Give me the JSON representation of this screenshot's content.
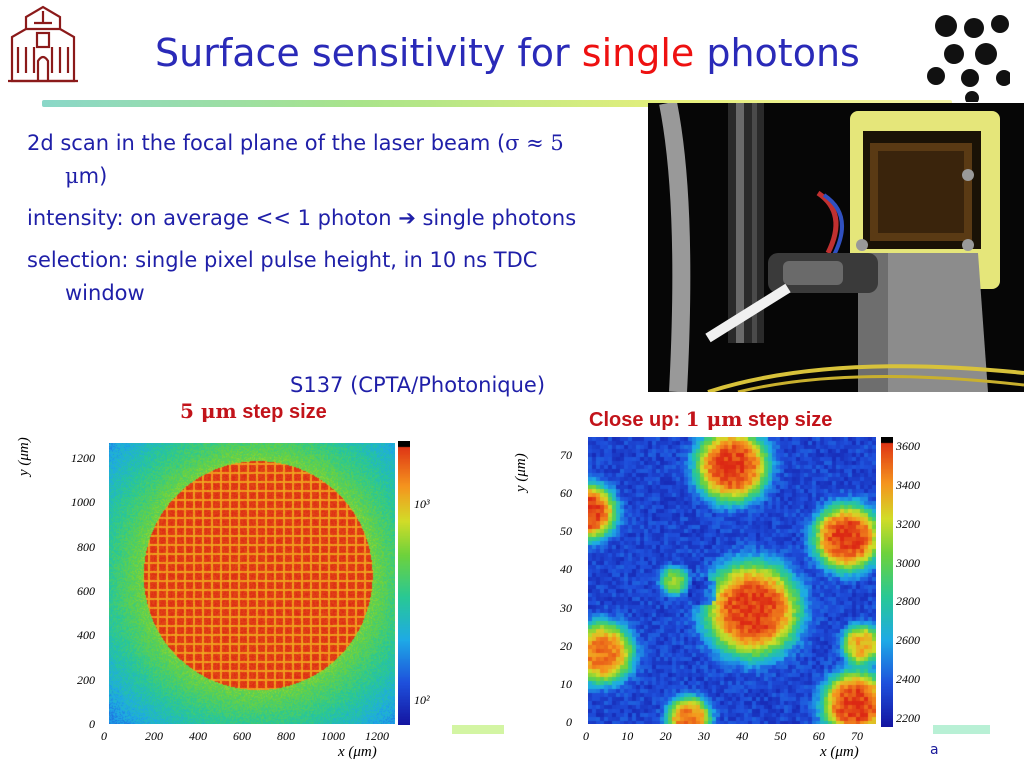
{
  "slide": {
    "title_before": "Surface sensitivity for ",
    "title_highlight": "single",
    "title_after": " photons"
  },
  "bullets": [
    {
      "text": "2d scan in the focal plane of the laser beam (",
      "sym1": "σ ≈ 5 μ",
      "tail": "m)"
    },
    {
      "text": "intensity: on average << 1 photon ",
      "sym1": "➔",
      "tail": " single photons"
    },
    {
      "text": "selection: single pixel pulse height, in 10 ns TDC window",
      "sym1": "",
      "tail": ""
    }
  ],
  "photo_caption": "S137 (CPTA/Photonique)",
  "left_plot": {
    "caption_pre": "5 ",
    "caption_unit": "μm",
    "caption_post": " step size",
    "y_title": "y (μm)",
    "x_title": "x (μm)",
    "y_ticks": [
      "1200",
      "1000",
      "800",
      "600",
      "400",
      "200",
      "0"
    ],
    "x_ticks": [
      "0",
      "200",
      "400",
      "600",
      "800",
      "1000",
      "1200"
    ],
    "cbar_labels": [
      "10³",
      "10²"
    ]
  },
  "right_plot": {
    "caption_pre": "Close up: ",
    "caption_num": "1 ",
    "caption_unit": "μm",
    "caption_post": " step size",
    "y_title": "y (μm)",
    "x_title": "x (μm)",
    "y_ticks": [
      "70",
      "60",
      "50",
      "40",
      "30",
      "20",
      "10",
      "0"
    ],
    "x_ticks": [
      "0",
      "10",
      "20",
      "30",
      "40",
      "50",
      "60",
      "70"
    ],
    "cbar_labels": [
      "3600",
      "3400",
      "3200",
      "3000",
      "2800",
      "2600",
      "2400",
      "2200"
    ]
  },
  "footer_fragment": "a",
  "colors": {
    "title_blue": "#2a2ab8",
    "highlight_red": "#ee1111",
    "text_blue": "#1f1fa8",
    "caption_red": "#c2131a"
  }
}
